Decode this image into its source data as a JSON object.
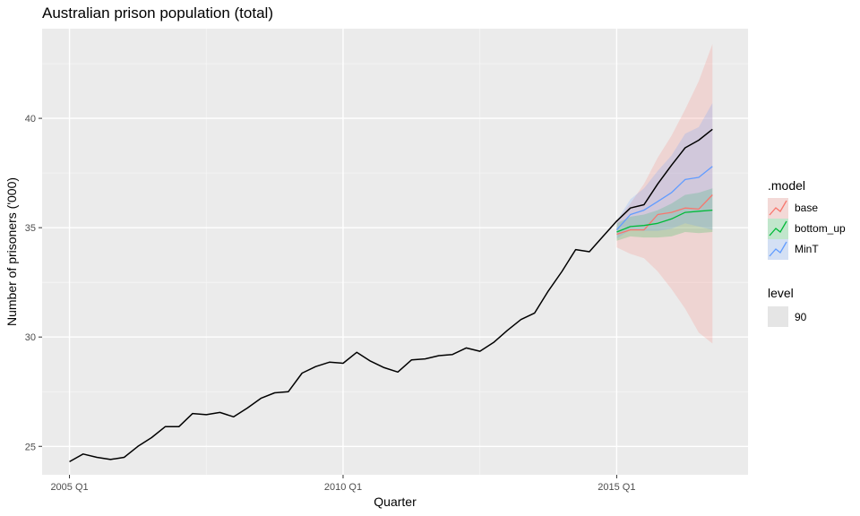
{
  "chart_data": {
    "type": "line",
    "title": "Australian prison population (total)",
    "xlabel": "Quarter",
    "ylabel": "Number of prisoners ('000)",
    "x_ticks": [
      {
        "label": "2005 Q1",
        "value": 2005.0
      },
      {
        "label": "2010 Q1",
        "value": 2010.0
      },
      {
        "label": "2015 Q1",
        "value": 2015.0
      }
    ],
    "y_ticks": [
      25,
      30,
      35,
      40
    ],
    "xlim": [
      2004.5,
      2017.4
    ],
    "ylim": [
      23.7,
      44.1
    ],
    "grid": true,
    "legend_position": "right",
    "observed": {
      "color": "#000000",
      "x": [
        2005.0,
        2005.25,
        2005.5,
        2005.75,
        2006.0,
        2006.25,
        2006.5,
        2006.75,
        2007.0,
        2007.25,
        2007.5,
        2007.75,
        2008.0,
        2008.25,
        2008.5,
        2008.75,
        2009.0,
        2009.25,
        2009.5,
        2009.75,
        2010.0,
        2010.25,
        2010.5,
        2010.75,
        2011.0,
        2011.25,
        2011.5,
        2011.75,
        2012.0,
        2012.25,
        2012.5,
        2012.75,
        2013.0,
        2013.25,
        2013.5,
        2013.75,
        2014.0,
        2014.25,
        2014.5,
        2014.75,
        2015.0,
        2015.25,
        2015.5,
        2015.75,
        2016.0,
        2016.25,
        2016.5,
        2016.75
      ],
      "y": [
        24.3,
        24.65,
        24.5,
        24.4,
        24.5,
        25.0,
        25.4,
        25.9,
        25.9,
        26.5,
        26.45,
        26.55,
        26.35,
        26.75,
        27.2,
        27.45,
        27.5,
        28.35,
        28.65,
        28.85,
        28.8,
        29.3,
        28.9,
        28.6,
        28.4,
        28.95,
        29.0,
        29.15,
        29.2,
        29.5,
        29.35,
        29.75,
        30.3,
        30.8,
        31.1,
        32.1,
        33.0,
        34.0,
        33.9,
        34.6,
        35.3,
        35.9,
        36.05,
        37.0,
        37.85,
        38.65,
        39.0,
        39.5
      ]
    },
    "legend": {
      "model_title": ".model",
      "level_title": "level",
      "level_label": "90"
    },
    "series": [
      {
        "name": "base",
        "color": "#F8766D",
        "fill": "#F8766D",
        "x": [
          2015.0,
          2015.25,
          2015.5,
          2015.75,
          2016.0,
          2016.25,
          2016.5,
          2016.75
        ],
        "y": [
          34.7,
          34.9,
          34.9,
          35.6,
          35.7,
          35.9,
          35.85,
          36.5
        ],
        "lower": [
          34.1,
          33.8,
          33.6,
          33.0,
          32.2,
          31.3,
          30.2,
          29.7
        ],
        "upper": [
          35.3,
          36.1,
          37.0,
          38.2,
          39.2,
          40.4,
          41.7,
          43.4
        ]
      },
      {
        "name": "bottom_up",
        "color": "#00BA38",
        "fill": "#00BA38",
        "x": [
          2015.0,
          2015.25,
          2015.5,
          2015.75,
          2016.0,
          2016.25,
          2016.5,
          2016.75
        ],
        "y": [
          34.8,
          35.05,
          35.1,
          35.2,
          35.4,
          35.7,
          35.75,
          35.8
        ],
        "lower": [
          34.4,
          34.6,
          34.55,
          34.55,
          34.6,
          34.8,
          34.75,
          34.8
        ],
        "upper": [
          35.2,
          35.5,
          35.6,
          35.8,
          36.1,
          36.5,
          36.6,
          36.8
        ]
      },
      {
        "name": "MinT",
        "color": "#619CFF",
        "fill": "#619CFF",
        "x": [
          2015.0,
          2015.25,
          2015.5,
          2015.75,
          2016.0,
          2016.25,
          2016.5,
          2016.75
        ],
        "y": [
          34.9,
          35.6,
          35.8,
          36.2,
          36.6,
          37.2,
          37.3,
          37.8
        ],
        "lower": [
          34.5,
          34.9,
          34.85,
          34.85,
          34.95,
          35.2,
          35.05,
          34.9
        ],
        "upper": [
          35.3,
          36.3,
          36.8,
          37.6,
          38.3,
          39.3,
          39.6,
          40.7
        ]
      }
    ]
  }
}
